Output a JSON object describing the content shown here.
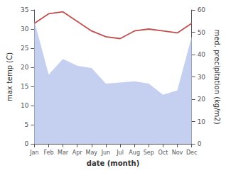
{
  "chart_data": {
    "type": "line",
    "xlabel": "date (month)",
    "ylabel": "max temp (C)",
    "y2label": "med. precipitation (kg/m2)",
    "categories": [
      "Jan",
      "Feb",
      "Mar",
      "Apr",
      "May",
      "Jun",
      "Jul",
      "Aug",
      "Sep",
      "Oct",
      "Nov",
      "Dec"
    ],
    "series": [
      {
        "type": "area",
        "color": "#c5d0f0",
        "axis": "y2",
        "values": [
          55.0,
          31.0,
          38.0,
          35.0,
          34.0,
          27.0,
          27.5,
          28.0,
          27.0,
          22.0,
          24.0,
          48.0
        ]
      },
      {
        "type": "line",
        "color": "#c0504d",
        "values": [
          31.5,
          34.0,
          34.5,
          32.0,
          29.5,
          28.0,
          27.5,
          29.5,
          30.0,
          29.5,
          29.0,
          31.5
        ]
      }
    ],
    "ylim": [
      0,
      35
    ],
    "yticks": [
      0,
      5,
      10,
      15,
      20,
      25,
      30,
      35
    ],
    "y2lim": [
      0,
      60
    ],
    "y2ticks": [
      0,
      10,
      20,
      30,
      40,
      50,
      60
    ],
    "grid": false
  }
}
